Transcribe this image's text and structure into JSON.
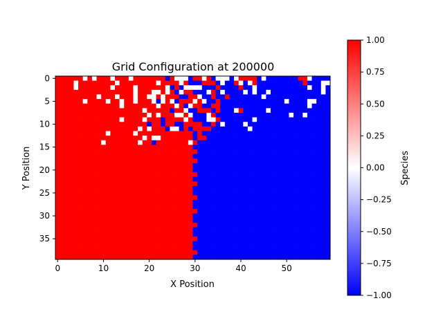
{
  "chart_data": {
    "type": "heatmap",
    "title": "Grid Configuration at 200000",
    "xlabel": "X Position",
    "ylabel": "Y Position",
    "colorbar_label": "Species",
    "grid": false,
    "cols": 60,
    "rows": 40,
    "xlim": [
      -0.5,
      59.5
    ],
    "ylim": [
      39.5,
      -0.5
    ],
    "xticks": [
      0,
      10,
      20,
      30,
      40,
      50
    ],
    "yticks": [
      0,
      5,
      10,
      15,
      20,
      25,
      30,
      35
    ],
    "colorbar_range": [
      -1.0,
      1.0
    ],
    "colorbar_ticks": [
      "1.00",
      "0.75",
      "0.50",
      "0.25",
      "0.00",
      "−0.25",
      "−0.50",
      "−0.75",
      "−1.00"
    ],
    "colormap": {
      "min_color": "#0000ff",
      "mid_color": "#ffffff",
      "max_color": "#ff0000"
    },
    "values": [
      "RRRRRRWRWRRRWRRRWRRRRRRRBRWWWBRRWRBWWWBWRRRRBWBBBBBBBRRWBBBB",
      "RRRRWRRRRRRRRWRRRRRRRRWRRRRWRBBBRRRBWBBRWBWRBBBBBBBBBBRBBBWW",
      "RRRRWRRRRRRRWRRRRWRRRRRRWBRBWWWWBBBRBBBBRBBWBBBBBBBBBBBWBBWB",
      "RRRRRRRRRRRRRRRRRWRRRWWRWRBWRRBBBWRBWBBBBWBWBBWBBBBBBBBBBBWB",
      "RRRRRRRRRWRRRWRRRWRRWWRWRRRBBRRWBBRBBRBBBBBBBWBBBBBBBBBBBBBB",
      "RRRRRRWRRRRWRRWRRWRRRWBWRWBRRRWRWBBRBBBBBBBBBBBBBBWBBBBWWBBB",
      "RRRRRRRRRRRRRRWRRRRRRRWRRRWRBWRRBBRRBBBBBBBBBBBBBBBBBBBWBBBB",
      "RRRRRRRRRRRRRRRRRRRWRRRRRBRRWBBRRRBRBBBWRBBBBBWBBBBBBBBBBBBB",
      "RRRRRRRRRRRRRRRRRRRRWRWRRRWWRWBBBWRBBBBBBBBBBBBBBBBWBBWBBBBB",
      "RRRRRRRRRRRRRRWRRRRWRRRBRRRRWRBBBWWRBBBBBBBWBBBBBBBBBBBBBBBB",
      "RRRRRRRRRRRRRRRRRRRRBRRBRRBBRRRRBBRBWBBBBWBBBBBBBBBBBBBBBBBB",
      "RRRRRRRRRRRRRRRRRRWRWRRRBWWBRBRRRRBBBBBBBBWBBBBBBBBBBBBBBBBB",
      "RRRRRRRRRRRWRRRRRWRRRRRRRRRRRRBRBBBBBBBBBBBBBBBBBBBBBBBBBBBB",
      "RRRRRRRRRRRRRRRRRRRWRWWRRRRRRRBRRBBBBBBBBBBBBBBBBBBBBBBBBBBB",
      "RRRRRRRRRRWRRRRRRRWRRBRRRRRRRWRBBBBBBBBBBBBBBBBBBBBBBBBBBBBB",
      "RRRRRRRRRRRRRRRRRRRRRRRRRRRRRRBBBBBBBBBBBBBBBBBBBBBBBBBBBBBB",
      "RRRRRRRRRRRRRRRRRRRRRRRRRRRRRRRBBBBBBBBBBBBBBBBBBBBBBBBBBBBB",
      "RRRRRRRRRRRRRRRRRRRRRRRRRRRRRRBBBBBBBBBBBBBBBBBBBBBBBBBBBBBB",
      "RRRRRRRRRRRRRRRRRRRRRRRRRRRRRRRBBBBBBBBBBBBBBBBBBBBBBBBBBBBB",
      "RRRRRRRRRRRRRRRRRRRRRRRRRRRRRRBBBBBBBBBBBBBBBBBBBBBBBBBBBBBB",
      "RRRRRRRRRRRRRRRRRRRRRRRRRRRRRRBBBBBBBBBBBBBBBBBBBBBBBBBBBBBB",
      "RRRRRRRRRRRRRRRRRRRRRRRRRRRRRRRBBBBBBBBBBBBBBBBBBBBBBBBBBBBB",
      "RRRRRRRRRRRRRRRRRRRRRRRRRRRRRRBBBBBBBBBBBBBBBBBBBBBBBBBBBBBB",
      "RRRRRRRRRRRRRRRRRRRRRRRRRRRRRRRBBBBBBBBBBBBBBBBBBBBBBBBBBBBB",
      "RRRRRRRRRRRRRRRRRRRRRRRRRRRRRRBBBBBBBBBBBBBBBBBBBBBBBBBBBBBB",
      "RRRRRRRRRRRRRRRRRRRRRRRRRRRRRRBBBBBBBBBBBBBBBBBBBBBBBBBBBBBB",
      "RRRRRRRRRRRRRRRRRRRRRRRRRRRRRRRBBBBBBBBBBBBBBBBBBBBBBBBBBBBB",
      "RRRRRRRRRRRRRRRRRRRRRRRRRRRRRRBBBBBBBBBBBBBBBBBBBBBBBBBBBBBB",
      "RRRRRRRRRRRRRRRRRRRRRRRRRRRRRRBBBBBBBBBBBBBBBBBBBBBBBBBBBBBB",
      "RRRRRRRRRRRRRRRRRRRRRRRRRRRRRRRBBBBBBBBBBBBBBBBBBBBBBBBBBBBB",
      "RRRRRRRRRRRRRRRRRRRRRRRRRRRRRRBBBBBBBBBBBBBBBBBBBBBBBBBBBBBB",
      "RRRRRRRRRRRRRRRRRRRRRRRRRRRRRRBBBBBBBBBBBBBBBBBBBBBBBBBBBBBB",
      "RRRRRRRRRRRRRRRRRRRRRRRRRRRRRRRBBBBBBBBBBBBBBBBBBBBBBBBBBBBB",
      "RRRRRRRRRRRRRRRRRRRRRRRRRRRRRRBBBBBBBBBBBBBBBBBBBBBBBBBBBBBB",
      "RRRRRRRRRRRRRRRRRRRRRRRRRRRRRRBBBBBBBBBBBBBBBBBBBBBBBBBBBBBB",
      "RRRRRRRRRRRRRRRRRRRRRRRRRRRRRRRBBBBBBBBBBBBBBBBBBBBBBBBBBBBB",
      "RRRRRRRRRRRRRRRRRRRRRRRRRRRRRRBBBBBBBBBBBBBBBBBBBBBBBBBBBBBB",
      "RRRRRRRRRRRRRRRRRRRRRRRRRRRRRRBBBBBBBBBBBBBBBBBBBBBBBBBBBBBB",
      "RRRRRRRRRRRRRRRRRRRRRRRRRRRRRRRBBBBBBBBBBBBBBBBBBBBBBBBBBBBB",
      "RRRRRRRRRRRRRRRRRRRRRRRRRRRRRRBBBBBBBBBBBBBBBBBBBBBBBBBBBBBB"
    ],
    "value_legend": {
      "R": 1,
      "W": 0,
      "B": -1
    }
  }
}
